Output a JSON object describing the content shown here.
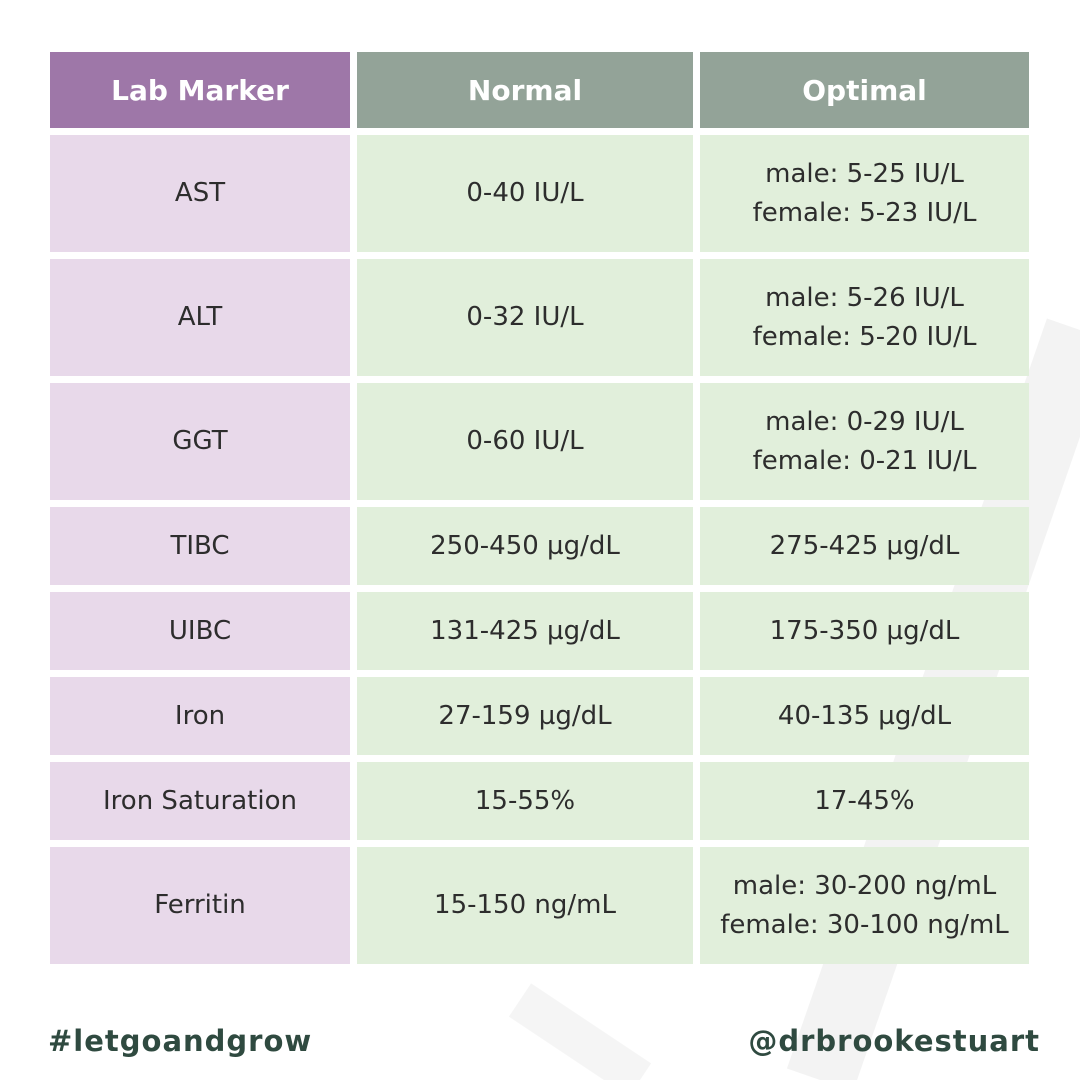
{
  "colors": {
    "header_marker": "#9e77a8",
    "header_value": "#93a398",
    "marker_cell": "#e8d9ea",
    "value_cell": "#e1efdb",
    "footer_text": "#2f4a40"
  },
  "headers": {
    "marker": "Lab Marker",
    "normal": "Normal",
    "optimal": "Optimal"
  },
  "rows": [
    {
      "marker": "AST",
      "normal": "0-40 IU/L",
      "optimal": [
        "male: 5-25 IU/L",
        "female: 5-23 IU/L"
      ]
    },
    {
      "marker": "ALT",
      "normal": "0-32 IU/L",
      "optimal": [
        "male: 5-26 IU/L",
        "female: 5-20 IU/L"
      ]
    },
    {
      "marker": "GGT",
      "normal": "0-60 IU/L",
      "optimal": [
        "male: 0-29 IU/L",
        "female: 0-21 IU/L"
      ]
    },
    {
      "marker": "TIBC",
      "normal": "250-450 µg/dL",
      "optimal": [
        "275-425 µg/dL"
      ]
    },
    {
      "marker": "UIBC",
      "normal": "131-425 µg/dL",
      "optimal": [
        "175-350 µg/dL"
      ]
    },
    {
      "marker": "Iron",
      "normal": "27-159 µg/dL",
      "optimal": [
        "40-135 µg/dL"
      ]
    },
    {
      "marker": "Iron Saturation",
      "normal": "15-55%",
      "optimal": [
        "17-45%"
      ]
    },
    {
      "marker": "Ferritin",
      "normal": "15-150 ng/mL",
      "optimal": [
        "male: 30-200 ng/mL",
        "female: 30-100 ng/mL"
      ]
    }
  ],
  "footer": {
    "hashtag": "#letgoandgrow",
    "handle": "@drbrookestuart"
  }
}
